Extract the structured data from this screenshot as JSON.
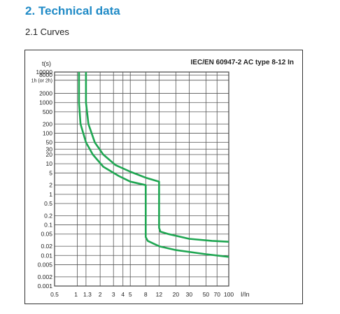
{
  "header": {
    "section_title": "2. Technical data",
    "sub_title": "2.1 Curves"
  },
  "colors": {
    "curve": "#1fa652",
    "grid": "#555555",
    "title": "#1f8ac6"
  },
  "chart_data": {
    "type": "line",
    "title": "IEC/EN 60947-2 AC type 8-12 In",
    "xlabel": "I/In",
    "ylabel": "t(s)",
    "xscale": "log",
    "yscale": "log",
    "xlim": [
      0.5,
      100
    ],
    "ylim": [
      0.001,
      10000
    ],
    "grid": true,
    "x_ticks": [
      {
        "v": 0.5,
        "label": "0.5"
      },
      {
        "v": 1,
        "label": "1"
      },
      {
        "v": 1.3,
        "label": "1.3"
      },
      {
        "v": 2,
        "label": "2"
      },
      {
        "v": 3,
        "label": "3"
      },
      {
        "v": 4,
        "label": "4"
      },
      {
        "v": 5,
        "label": "5"
      },
      {
        "v": 8,
        "label": "8"
      },
      {
        "v": 12,
        "label": "12"
      },
      {
        "v": 20,
        "label": "20"
      },
      {
        "v": 30,
        "label": "30"
      },
      {
        "v": 50,
        "label": "50"
      },
      {
        "v": 70,
        "label": "70"
      },
      {
        "v": 100,
        "label": "100"
      }
    ],
    "y_ticks": [
      {
        "v": 10000,
        "label": "10000"
      },
      {
        "v": 8000,
        "label": "8000"
      },
      {
        "v": 5400,
        "label": "1h (or 2h)"
      },
      {
        "v": 2000,
        "label": "2000"
      },
      {
        "v": 1000,
        "label": "1000"
      },
      {
        "v": 500,
        "label": "500"
      },
      {
        "v": 200,
        "label": "200"
      },
      {
        "v": 100,
        "label": "100"
      },
      {
        "v": 50,
        "label": "50"
      },
      {
        "v": 30,
        "label": "30"
      },
      {
        "v": 20,
        "label": "20"
      },
      {
        "v": 10,
        "label": "10"
      },
      {
        "v": 5,
        "label": "5"
      },
      {
        "v": 2,
        "label": "2"
      },
      {
        "v": 1,
        "label": "1"
      },
      {
        "v": 0.5,
        "label": "0.5"
      },
      {
        "v": 0.2,
        "label": "0.2"
      },
      {
        "v": 0.1,
        "label": "0.1"
      },
      {
        "v": 0.05,
        "label": "0.05"
      },
      {
        "v": 0.02,
        "label": "0.02"
      },
      {
        "v": 0.01,
        "label": "0.01"
      },
      {
        "v": 0.005,
        "label": "0.005"
      },
      {
        "v": 0.002,
        "label": "0.002"
      },
      {
        "v": 0.001,
        "label": "0.001"
      }
    ],
    "series": [
      {
        "points": [
          [
            1.05,
            10000
          ],
          [
            1.05,
            1000
          ],
          [
            1.1,
            200
          ],
          [
            1.3,
            50
          ],
          [
            1.6,
            20
          ],
          [
            2.2,
            8
          ],
          [
            3.5,
            4
          ],
          [
            5,
            2.6
          ],
          [
            8,
            2
          ],
          [
            8,
            0.04
          ],
          [
            8.5,
            0.03
          ],
          [
            12,
            0.02
          ],
          [
            20,
            0.015
          ],
          [
            50,
            0.011
          ],
          [
            100,
            0.009
          ]
        ]
      },
      {
        "points": [
          [
            1.3,
            10000
          ],
          [
            1.3,
            1000
          ],
          [
            1.4,
            200
          ],
          [
            1.7,
            50
          ],
          [
            2.2,
            20
          ],
          [
            3.2,
            9
          ],
          [
            5,
            5.5
          ],
          [
            8,
            3.5
          ],
          [
            12,
            2.6
          ],
          [
            12,
            0.08
          ],
          [
            12.5,
            0.06
          ],
          [
            16,
            0.05
          ],
          [
            30,
            0.035
          ],
          [
            60,
            0.03
          ],
          [
            100,
            0.028
          ]
        ]
      }
    ]
  }
}
